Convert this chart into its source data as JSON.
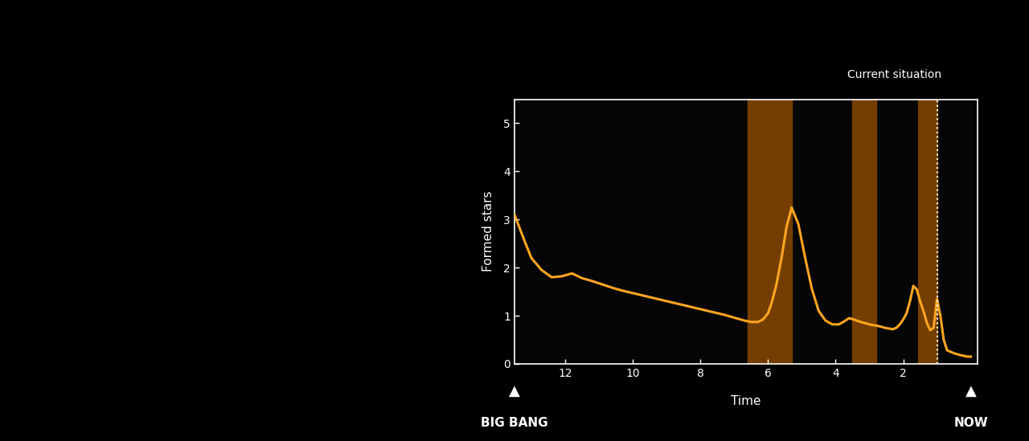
{
  "bg_color": "#000000",
  "plot_bg_color": "#050505",
  "line_color": "#FFA520",
  "line_width": 2.2,
  "ylabel": "Formed stars",
  "xlabel": "Time",
  "ylim": [
    0,
    5.5
  ],
  "xlim": [
    13.5,
    -0.2
  ],
  "xticks": [
    12,
    10,
    8,
    6,
    4,
    2
  ],
  "yticks": [
    0,
    1,
    2,
    3,
    4,
    5
  ],
  "tick_color": "#ffffff",
  "tick_label_color": "#ffffff",
  "spine_color": "#ffffff",
  "band1_xmin": 5.3,
  "band1_xmax": 6.6,
  "band2_xmin": 2.8,
  "band2_xmax": 3.5,
  "band3_xmin": 1.0,
  "band3_xmax": 1.55,
  "band_color": "#7A4200",
  "band_alpha": 0.95,
  "dotted_line_x": 1.0,
  "dotted_line_color": "#ffffff",
  "current_situation_label": "Current situation",
  "big_bang_label": "BIG BANG",
  "now_label": "NOW",
  "big_bang_x": 13.5,
  "now_x": 0.0,
  "curve_x": [
    13.5,
    13.2,
    13.0,
    12.7,
    12.4,
    12.1,
    11.8,
    11.5,
    11.2,
    10.9,
    10.6,
    10.3,
    10.0,
    9.7,
    9.4,
    9.1,
    8.8,
    8.5,
    8.2,
    7.9,
    7.6,
    7.3,
    7.1,
    6.9,
    6.7,
    6.5,
    6.3,
    6.15,
    6.0,
    5.9,
    5.75,
    5.6,
    5.45,
    5.3,
    5.1,
    4.9,
    4.7,
    4.5,
    4.3,
    4.1,
    3.9,
    3.75,
    3.6,
    3.45,
    3.3,
    3.15,
    3.0,
    2.85,
    2.7,
    2.55,
    2.4,
    2.3,
    2.2,
    2.1,
    2.0,
    1.9,
    1.8,
    1.7,
    1.6,
    1.5,
    1.4,
    1.3,
    1.2,
    1.1,
    1.0,
    0.9,
    0.8,
    0.7,
    0.5,
    0.3,
    0.1,
    0.0
  ],
  "curve_y": [
    3.1,
    2.55,
    2.2,
    1.95,
    1.8,
    1.82,
    1.88,
    1.78,
    1.72,
    1.65,
    1.58,
    1.52,
    1.47,
    1.42,
    1.37,
    1.32,
    1.27,
    1.22,
    1.17,
    1.12,
    1.07,
    1.02,
    0.98,
    0.94,
    0.9,
    0.87,
    0.87,
    0.92,
    1.05,
    1.25,
    1.65,
    2.2,
    2.85,
    3.25,
    2.9,
    2.2,
    1.55,
    1.1,
    0.9,
    0.82,
    0.82,
    0.88,
    0.95,
    0.92,
    0.88,
    0.85,
    0.82,
    0.8,
    0.78,
    0.75,
    0.73,
    0.72,
    0.75,
    0.82,
    0.92,
    1.05,
    1.3,
    1.62,
    1.55,
    1.3,
    1.1,
    0.85,
    0.7,
    0.75,
    1.35,
    1.0,
    0.5,
    0.28,
    0.22,
    0.18,
    0.15,
    0.15
  ]
}
